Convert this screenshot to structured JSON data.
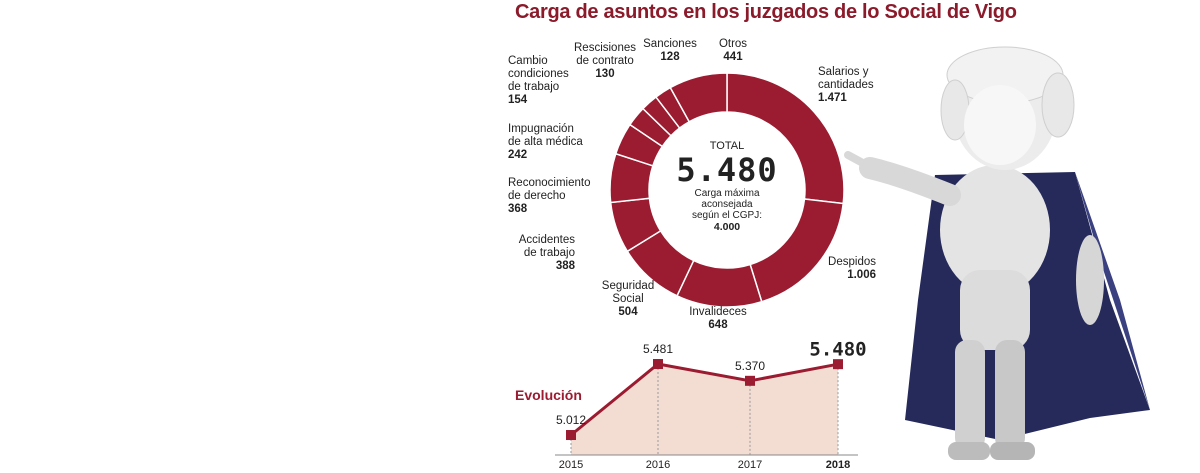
{
  "chart_data": [
    {
      "type": "donut",
      "title": "Carga de asuntos en los juzgados de lo Social de Vigo",
      "categories": [
        "Salarios y\ncantidades",
        "Despidos",
        "Invalideces",
        "Seguridad\nSocial",
        "Accidentes\nde trabajo",
        "Reconocimiento\nde derecho",
        "Impugnación\nde alta médica",
        "Cambio\ncondiciones\nde trabajo",
        "Rescisiones\nde contrato",
        "Sanciones",
        "Otros"
      ],
      "values": [
        1471,
        1006,
        648,
        504,
        388,
        368,
        242,
        154,
        130,
        128,
        441
      ],
      "value_labels": [
        "1.471",
        "1.006",
        "648",
        "504",
        "388",
        "368",
        "242",
        "154",
        "130",
        "128",
        "441"
      ],
      "color": "#9b1b30",
      "center": {
        "title": "TOTAL",
        "value": "5.480",
        "note": "Carga máxima\naconsejada\nsegún el CGPJ:",
        "note_value": "4.000"
      }
    },
    {
      "type": "area",
      "title": "Evolución",
      "categories": [
        "2015",
        "2016",
        "2017",
        "2018"
      ],
      "values": [
        5012,
        5481,
        5370,
        5480
      ],
      "value_labels": [
        "5.012",
        "5.481",
        "5.370",
        "5.480"
      ],
      "color": "#9b1b30",
      "fill": "#f3ddd3",
      "ylim": [
        4880,
        5600
      ]
    }
  ]
}
